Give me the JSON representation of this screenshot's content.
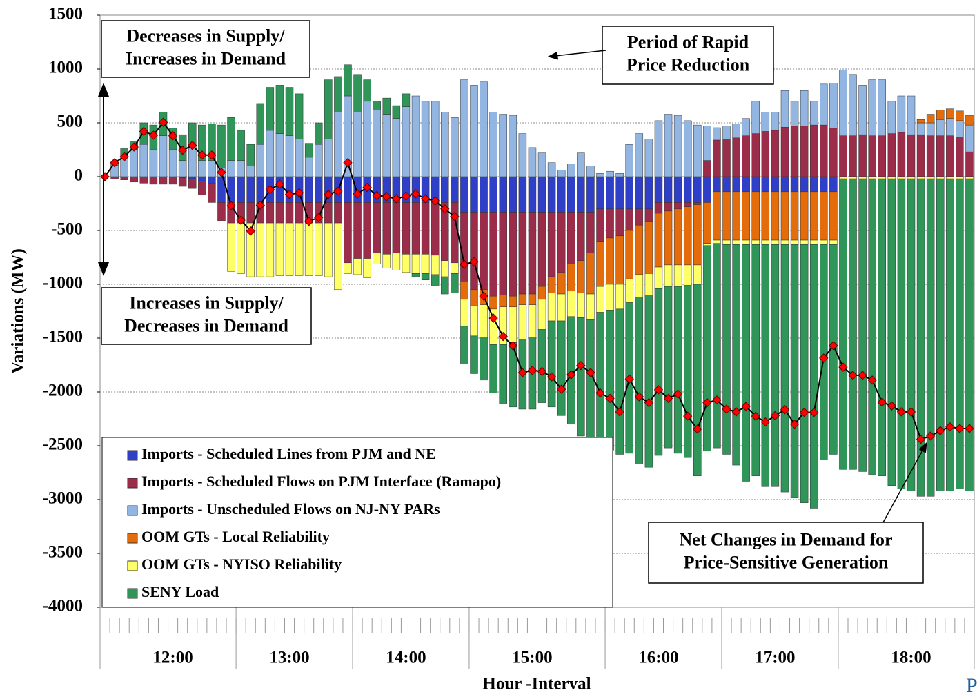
{
  "chart_data": {
    "type": "stacked-bar",
    "y_label": "Variations (MW)",
    "x_label": "Hour -Interval",
    "logo": "P",
    "ylim": [
      -4000,
      1500
    ],
    "yticks": [
      -4000,
      -3500,
      -3000,
      -2500,
      -2000,
      -1500,
      -1000,
      -500,
      0,
      500,
      1000,
      1500
    ],
    "grid": true,
    "categories": [
      null,
      null,
      null,
      null,
      null,
      null,
      null,
      "12:00",
      null,
      null,
      null,
      null,
      null,
      null,
      null,
      null,
      null,
      null,
      null,
      "13:00",
      null,
      null,
      null,
      null,
      null,
      null,
      null,
      null,
      null,
      null,
      null,
      "14:00",
      null,
      null,
      null,
      null,
      null,
      null,
      null,
      null,
      null,
      null,
      null,
      null,
      "15:00",
      null,
      null,
      null,
      null,
      null,
      null,
      null,
      null,
      null,
      null,
      null,
      null,
      "16:00",
      null,
      null,
      null,
      null,
      null,
      null,
      null,
      null,
      null,
      null,
      null,
      "17:00",
      null,
      null,
      null,
      null,
      null,
      null,
      null,
      null,
      null,
      null,
      null,
      null,
      null,
      "18:00",
      null,
      null,
      null,
      null,
      null,
      null
    ],
    "series": [
      {
        "name": "Imports - Scheduled Lines from PJM and NE",
        "color": "#2f3fc8",
        "values": [
          0,
          0,
          0,
          0,
          0,
          0,
          0,
          0,
          -10,
          -20,
          -40,
          -60,
          -240,
          -240,
          -240,
          -240,
          -240,
          -240,
          -240,
          -240,
          -240,
          -240,
          -240,
          -240,
          -240,
          -240,
          -240,
          -240,
          -240,
          -240,
          -240,
          -240,
          -240,
          -240,
          -240,
          -240,
          -240,
          -330,
          -330,
          -330,
          -330,
          -330,
          -330,
          -330,
          -330,
          -330,
          -330,
          -330,
          -330,
          -330,
          -330,
          -300,
          -300,
          -300,
          -300,
          -300,
          -300,
          -240,
          -240,
          -240,
          -240,
          -240,
          -240,
          -140,
          -140,
          -140,
          -140,
          -140,
          -140,
          -140,
          -140,
          -140,
          -140,
          -140,
          -140,
          -140,
          0,
          0,
          0,
          0,
          0,
          0,
          0,
          0,
          0,
          0,
          0,
          0,
          0,
          0
        ]
      },
      {
        "name": "Imports - Scheduled Flows on PJM Interface (Ramapo)",
        "color": "#9b2d4b",
        "values": [
          0,
          -20,
          -30,
          -50,
          -60,
          -70,
          -70,
          -70,
          -80,
          -90,
          -130,
          -180,
          -170,
          -190,
          -190,
          -190,
          -190,
          -190,
          -190,
          -190,
          -190,
          -190,
          -190,
          -190,
          -190,
          -560,
          -520,
          -520,
          -470,
          -480,
          -470,
          -480,
          -480,
          -480,
          -490,
          -540,
          -560,
          -640,
          -720,
          -720,
          -780,
          -770,
          -780,
          -760,
          -760,
          -690,
          -600,
          -560,
          -480,
          -450,
          -380,
          -300,
          -270,
          -250,
          -200,
          -150,
          -120,
          -100,
          -80,
          -60,
          -40,
          -20,
          150,
          340,
          350,
          360,
          380,
          400,
          420,
          430,
          460,
          470,
          470,
          480,
          480,
          450,
          380,
          380,
          390,
          380,
          380,
          400,
          410,
          390,
          390,
          380,
          380,
          380,
          370,
          230
        ]
      },
      {
        "name": "Imports - Unscheduled Flows on NJ-NY PARs",
        "color": "#92b5e2",
        "values": [
          0,
          100,
          180,
          250,
          300,
          250,
          380,
          250,
          150,
          300,
          150,
          150,
          80,
          150,
          150,
          100,
          300,
          430,
          400,
          380,
          350,
          180,
          300,
          350,
          600,
          750,
          600,
          700,
          620,
          580,
          540,
          650,
          750,
          700,
          700,
          600,
          550,
          900,
          850,
          880,
          600,
          580,
          570,
          400,
          270,
          220,
          130,
          60,
          120,
          220,
          100,
          30,
          50,
          30,
          300,
          400,
          350,
          520,
          580,
          570,
          520,
          480,
          320,
          115,
          120,
          130,
          160,
          300,
          180,
          170,
          340,
          230,
          330,
          220,
          380,
          420,
          610,
          570,
          460,
          520,
          520,
          300,
          340,
          360,
          110,
          120,
          150,
          160,
          150,
          250
        ]
      },
      {
        "name": "OOM GTs - Local Reliability",
        "color": "#e46c0a",
        "values": [
          0,
          0,
          0,
          0,
          0,
          0,
          0,
          0,
          0,
          0,
          0,
          0,
          0,
          0,
          0,
          0,
          0,
          0,
          0,
          0,
          0,
          0,
          0,
          0,
          0,
          0,
          0,
          0,
          0,
          0,
          0,
          0,
          0,
          0,
          0,
          0,
          0,
          -170,
          -150,
          -140,
          -120,
          -110,
          -100,
          -100,
          -100,
          -120,
          -150,
          -200,
          -250,
          -300,
          -380,
          -420,
          -430,
          -450,
          -450,
          -460,
          -480,
          -500,
          -500,
          -520,
          -540,
          -560,
          -380,
          -450,
          -450,
          -450,
          -450,
          -450,
          -450,
          -450,
          -450,
          -450,
          -450,
          -450,
          -450,
          -450,
          0,
          0,
          0,
          0,
          0,
          0,
          0,
          0,
          30,
          80,
          90,
          90,
          90,
          90
        ]
      },
      {
        "name": "OOM GTs - NYISO Reliability",
        "color": "#ffff66",
        "values": [
          0,
          0,
          0,
          0,
          0,
          0,
          0,
          0,
          0,
          0,
          0,
          0,
          0,
          -450,
          -470,
          -500,
          -500,
          -500,
          -490,
          -490,
          -490,
          -490,
          -490,
          -500,
          -620,
          -100,
          -150,
          -180,
          -100,
          -130,
          -160,
          -170,
          -180,
          -180,
          -180,
          -150,
          -100,
          -250,
          -280,
          -300,
          -330,
          -350,
          -330,
          -320,
          -300,
          -280,
          -260,
          -250,
          -240,
          -230,
          -240,
          -240,
          -240,
          -230,
          -220,
          -210,
          -200,
          -200,
          -200,
          -200,
          -190,
          -180,
          -20,
          -30,
          -40,
          -40,
          -40,
          -40,
          -40,
          -40,
          -40,
          -40,
          -40,
          -40,
          -40,
          -40,
          -20,
          -20,
          -20,
          -20,
          -20,
          -20,
          -20,
          -20,
          -20,
          -20,
          -20,
          -20,
          -20,
          -20
        ]
      },
      {
        "name": "SENY Load",
        "color": "#2f9559",
        "values": [
          0,
          30,
          80,
          80,
          200,
          230,
          220,
          200,
          240,
          200,
          330,
          340,
          400,
          400,
          280,
          200,
          380,
          400,
          450,
          450,
          420,
          130,
          200,
          550,
          330,
          290,
          350,
          200,
          80,
          150,
          120,
          120,
          -30,
          -60,
          -100,
          -160,
          -180,
          -350,
          -350,
          -400,
          -450,
          -550,
          -600,
          -650,
          -670,
          -680,
          -800,
          -880,
          -1000,
          -1100,
          -1200,
          -1250,
          -1300,
          -1350,
          -1400,
          -1550,
          -1600,
          -1550,
          -1500,
          -1550,
          -1600,
          -1780,
          -1910,
          -1900,
          -1950,
          -2050,
          -2200,
          -2150,
          -2250,
          -2250,
          -2300,
          -2350,
          -2400,
          -2450,
          -2000,
          -1950,
          -2700,
          -2700,
          -2720,
          -2750,
          -2760,
          -2850,
          -2880,
          -2900,
          -2950,
          -2950,
          -2900,
          -2900,
          -2880,
          -2900
        ]
      }
    ],
    "line": {
      "color": "#ff0000",
      "values": [
        0,
        130,
        185,
        275,
        420,
        385,
        505,
        380,
        245,
        290,
        200,
        200,
        40,
        -270,
        -405,
        -505,
        -265,
        -120,
        -70,
        -165,
        -150,
        -415,
        -380,
        -165,
        -135,
        130,
        -160,
        -100,
        -175,
        -185,
        -205,
        -180,
        -160,
        -205,
        -225,
        -300,
        -370,
        -815,
        -790,
        -1110,
        -1315,
        -1485,
        -1570,
        -1820,
        -1800,
        -1810,
        -1860,
        -1975,
        -1840,
        -1755,
        -1820,
        -2010,
        -2060,
        -2185,
        -1880,
        -2045,
        -2100,
        -1980,
        -2060,
        -2020,
        -2225,
        -2345,
        -2100,
        -2075,
        -2160,
        -2185,
        -2135,
        -2225,
        -2280,
        -2220,
        -2165,
        -2300,
        -2190,
        -2190,
        -1685,
        -1570,
        -1770,
        -1845,
        -1845,
        -1890,
        -2095,
        -2130,
        -2185,
        -2185,
        -2440,
        -2410,
        -2360,
        -2325,
        -2340,
        -2340
      ]
    },
    "annotations": [
      {
        "lines": [
          "Decreases in Supply/",
          "Increases in Demand"
        ]
      },
      {
        "lines": [
          "Period of Rapid",
          "Price Reduction"
        ]
      },
      {
        "lines": [
          "Increases in Supply/",
          "Decreases in Demand"
        ]
      },
      {
        "lines": [
          "Net Changes in Demand for",
          "Price-Sensitive Generation"
        ]
      }
    ]
  }
}
